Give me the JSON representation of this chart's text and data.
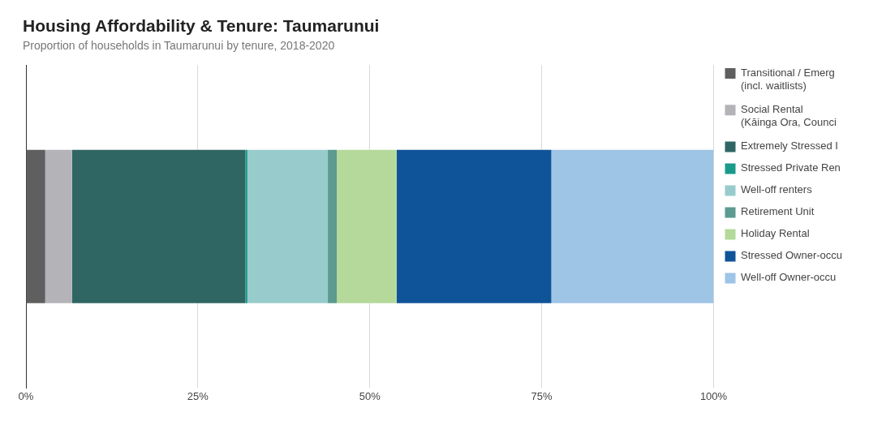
{
  "chart_data": {
    "type": "bar",
    "title": "Housing Affordability & Tenure: Taumarunui",
    "subtitle": "Proportion of households in Taumarunui by tenure, 2018-2020",
    "orientation": "horizontal",
    "stacked": true,
    "categories": [
      null
    ],
    "series": [
      {
        "name": "Transitional / Emerg (incl. waitlists)",
        "color": "#5f5f5f",
        "values": [
          2.8
        ]
      },
      {
        "name": "Social Rental (Kāinga Ora, Counci",
        "color": "#b3b3b8",
        "values": [
          3.9
        ]
      },
      {
        "name": "Extremely Stressed I",
        "color": "#2f6663",
        "values": [
          25.2
        ]
      },
      {
        "name": "Stressed Private Ren",
        "color": "#1a9a8a",
        "values": [
          0.3
        ]
      },
      {
        "name": "Well-off renters",
        "color": "#98cccc",
        "values": [
          11.7
        ]
      },
      {
        "name": "Retirement Unit",
        "color": "#5d9a90",
        "values": [
          1.3
        ]
      },
      {
        "name": "Holiday Rental",
        "color": "#b4d99a",
        "values": [
          8.7
        ]
      },
      {
        "name": "Stressed Owner-occu",
        "color": "#0f5499",
        "values": [
          22.5
        ]
      },
      {
        "name": "Well-off Owner-occu",
        "color": "#9ec4e6",
        "values": [
          23.6
        ]
      }
    ],
    "xlim": [
      0,
      100
    ],
    "xticks": [
      {
        "value": 0,
        "label": "0%"
      },
      {
        "value": 25,
        "label": "25%"
      },
      {
        "value": 50,
        "label": "50%"
      },
      {
        "value": 75,
        "label": "75%"
      },
      {
        "value": 100,
        "label": "100%"
      }
    ],
    "grid": "x",
    "legend": "right"
  }
}
